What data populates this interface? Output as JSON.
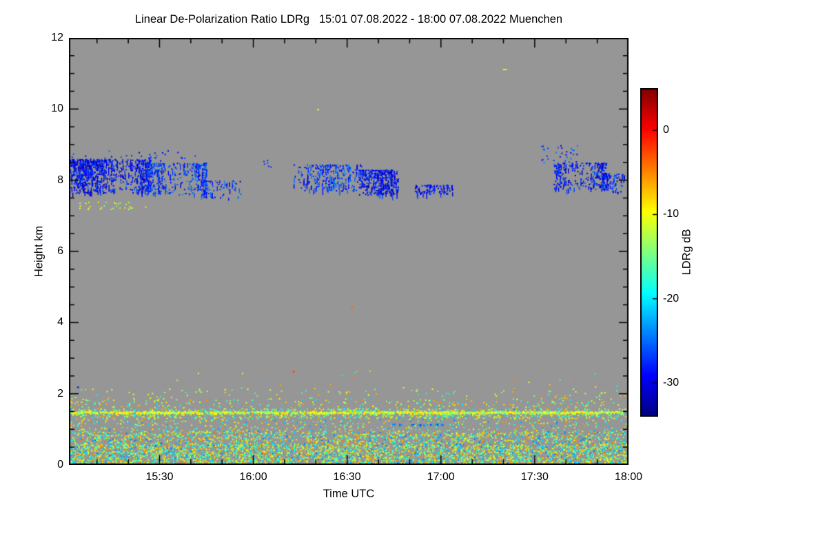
{
  "chart_data": {
    "type": "heatmap",
    "title": "Linear De-Polarization Ratio LDRg   15:01 07.08.2022 - 18:00 07.08.2022 Muenchen",
    "xlabel": "Time UTC",
    "ylabel": "Height km",
    "x_range_hours": [
      15.017,
      18.0
    ],
    "x_ticks": [
      {
        "value": 15.5,
        "label": "15:30"
      },
      {
        "value": 16.0,
        "label": "16:00"
      },
      {
        "value": 16.5,
        "label": "16:30"
      },
      {
        "value": 17.0,
        "label": "17:00"
      },
      {
        "value": 17.5,
        "label": "17:30"
      },
      {
        "value": 18.0,
        "label": "18:00"
      }
    ],
    "x_minor_step_hours": 0.166667,
    "y_range_km": [
      0,
      12
    ],
    "y_ticks": [
      {
        "value": 0,
        "label": "0"
      },
      {
        "value": 2,
        "label": "2"
      },
      {
        "value": 4,
        "label": "4"
      },
      {
        "value": 6,
        "label": "6"
      },
      {
        "value": 8,
        "label": "8"
      },
      {
        "value": 10,
        "label": "10"
      },
      {
        "value": 12,
        "label": "12"
      }
    ],
    "y_minor_step_km": 0.5,
    "no_data_color": "#969696",
    "colorbar": {
      "label": "LDRg dB",
      "min": -34,
      "max": 5,
      "colormap": "jet",
      "ticks": [
        {
          "value": 0,
          "label": "0"
        },
        {
          "value": -10,
          "label": "-10"
        },
        {
          "value": -20,
          "label": "-20"
        },
        {
          "value": -30,
          "label": "-30"
        }
      ]
    },
    "features": [
      {
        "name": "cirrus-patch1-core",
        "type": "cloud",
        "t": [
          15.017,
          15.45
        ],
        "h": [
          7.65,
          8.6
        ],
        "density": 0.6,
        "v": [
          -33,
          -26
        ]
      },
      {
        "name": "cirrus-patch1-east",
        "type": "cloud",
        "t": [
          15.42,
          15.75
        ],
        "h": [
          7.6,
          8.5
        ],
        "density": 0.42,
        "v": [
          -31,
          -24
        ]
      },
      {
        "name": "cirrus-patch1-tail",
        "type": "cloud",
        "t": [
          15.72,
          15.93
        ],
        "h": [
          7.5,
          8.0
        ],
        "density": 0.32,
        "v": [
          -31,
          -24
        ]
      },
      {
        "name": "cirrus-patch1-top-fringe",
        "type": "speckle",
        "t": [
          15.03,
          15.7
        ],
        "h": [
          8.55,
          8.85
        ],
        "density": 0.05,
        "v": [
          -31,
          -25
        ]
      },
      {
        "name": "sub-cloud-aerosol-dots",
        "type": "speckle",
        "t": [
          15.03,
          15.45
        ],
        "h": [
          7.2,
          7.4
        ],
        "density": 0.1,
        "v": [
          -15,
          -8
        ]
      },
      {
        "name": "cirrus-specks-1608",
        "type": "speckle",
        "t": [
          16.05,
          16.13
        ],
        "h": [
          8.35,
          8.6
        ],
        "density": 0.08,
        "v": [
          -29,
          -24
        ]
      },
      {
        "name": "cirrus-patch2-west",
        "type": "cloud",
        "t": [
          16.21,
          16.6
        ],
        "h": [
          7.7,
          8.45
        ],
        "density": 0.28,
        "v": [
          -31,
          -24
        ]
      },
      {
        "name": "cirrus-patch2-core",
        "type": "cloud",
        "t": [
          16.56,
          16.77
        ],
        "h": [
          7.6,
          8.3
        ],
        "density": 0.52,
        "v": [
          -33,
          -26
        ]
      },
      {
        "name": "cirrus-patch3-dashes",
        "type": "cloud",
        "t": [
          16.86,
          17.06
        ],
        "h": [
          7.6,
          7.88
        ],
        "density": 0.38,
        "v": [
          -32,
          -26
        ]
      },
      {
        "name": "cirrus-patch4-fringe",
        "type": "speckle",
        "t": [
          17.53,
          17.73
        ],
        "h": [
          8.4,
          9.0
        ],
        "density": 0.09,
        "v": [
          -30,
          -24
        ]
      },
      {
        "name": "cirrus-patch4-core",
        "type": "cloud",
        "t": [
          17.6,
          17.88
        ],
        "h": [
          7.75,
          8.5
        ],
        "density": 0.46,
        "v": [
          -33,
          -25
        ]
      },
      {
        "name": "cirrus-patch4-east",
        "type": "cloud",
        "t": [
          17.85,
          17.995
        ],
        "h": [
          7.65,
          8.2
        ],
        "density": 0.4,
        "v": [
          -32,
          -25
        ]
      },
      {
        "name": "boundary-layer-dense-lower",
        "type": "speckle",
        "t": [
          15.017,
          18.0
        ],
        "h": [
          0.0,
          0.6
        ],
        "density": 0.68,
        "v": [
          -25,
          -4
        ]
      },
      {
        "name": "boundary-layer-mid",
        "type": "speckle",
        "t": [
          15.017,
          18.0
        ],
        "h": [
          0.6,
          0.95
        ],
        "density": 0.4,
        "v": [
          -25,
          -4
        ]
      },
      {
        "name": "boundary-layer-gap",
        "type": "speckle",
        "t": [
          15.017,
          18.0
        ],
        "h": [
          0.95,
          1.32
        ],
        "density": 0.12,
        "v": [
          -24,
          -5
        ]
      },
      {
        "name": "residual-layer-band",
        "type": "speckle",
        "t": [
          15.017,
          18.0
        ],
        "h": [
          1.32,
          1.6
        ],
        "density": 0.38,
        "v": [
          -23,
          -5
        ]
      },
      {
        "name": "thin-layer-line-1p46km",
        "type": "hline",
        "t": [
          15.017,
          18.0
        ],
        "h": 1.46,
        "thickness_px": 4,
        "coverage": 0.96,
        "v": [
          -15,
          -8
        ]
      },
      {
        "name": "boundary-layer-upper",
        "type": "speckle",
        "t": [
          15.017,
          18.0
        ],
        "h": [
          1.6,
          1.88
        ],
        "density": 0.09,
        "v": [
          -22,
          -5
        ]
      },
      {
        "name": "boundary-layer-top-taper",
        "type": "speckle",
        "t": [
          15.017,
          18.0
        ],
        "h": [
          1.88,
          2.15
        ],
        "density": 0.035,
        "v": [
          -20,
          -6
        ]
      },
      {
        "name": "sparse-specks-above-bl",
        "type": "speckle",
        "t": [
          15.017,
          18.0
        ],
        "h": [
          2.15,
          2.7
        ],
        "density": 0.004,
        "v": [
          -20,
          -4
        ]
      },
      {
        "name": "cyan-dash-layer",
        "type": "hline",
        "t": [
          16.74,
          17.02
        ],
        "h": 1.12,
        "thickness_px": 3,
        "coverage": 0.5,
        "v": [
          -27,
          -21
        ]
      },
      {
        "name": "isolated-dot-10km",
        "type": "dot",
        "t": 16.34,
        "h": 10.0,
        "v": -10,
        "w": 3,
        "hpx": 2
      },
      {
        "name": "isolated-dash-11km",
        "type": "dot",
        "t": 17.33,
        "h": 11.13,
        "v": -9,
        "w": 6,
        "hpx": 2
      },
      {
        "name": "isolated-dot-4p5km",
        "type": "dot",
        "t": 16.52,
        "h": 4.47,
        "v": -4,
        "w": 3,
        "hpx": 3
      },
      {
        "name": "isolated-dot-2p6km",
        "type": "dot",
        "t": 16.21,
        "h": 2.65,
        "v": -3,
        "w": 3,
        "hpx": 3
      },
      {
        "name": "isolated-dot-2p2km",
        "type": "dot",
        "t": 15.06,
        "h": 2.2,
        "v": -28,
        "w": 3,
        "hpx": 2
      }
    ]
  }
}
